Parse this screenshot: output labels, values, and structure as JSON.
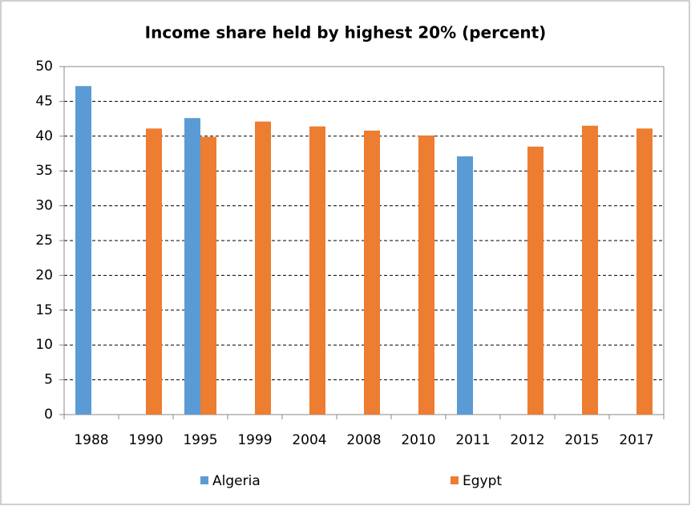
{
  "chart_data": {
    "type": "bar",
    "title": "Income share held by highest 20% (percent)",
    "categories": [
      "1988",
      "1990",
      "1995",
      "1999",
      "2004",
      "2008",
      "2010",
      "2011",
      "2012",
      "2015",
      "2017"
    ],
    "series": [
      {
        "name": "Algeria",
        "color": "#5b9bd5",
        "values": [
          47.2,
          null,
          42.6,
          null,
          null,
          null,
          null,
          37.1,
          null,
          null,
          null
        ]
      },
      {
        "name": "Egypt",
        "color": "#ed7d31",
        "values": [
          null,
          41.1,
          39.9,
          42.1,
          41.4,
          40.8,
          40.1,
          null,
          38.5,
          41.5,
          41.1
        ]
      }
    ],
    "ylim": [
      0,
      50
    ],
    "yticks": [
      0,
      5,
      10,
      15,
      20,
      25,
      30,
      35,
      40,
      45,
      50
    ],
    "grid": true,
    "legend": "bottom"
  }
}
